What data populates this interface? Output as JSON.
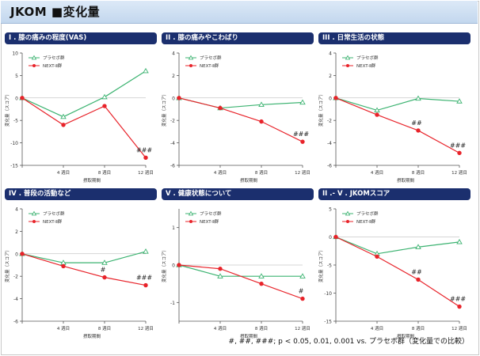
{
  "page": {
    "title": "JKOM  ■変化量"
  },
  "footnote": "#, ##, ###; p < 0.05, 0.01, 0.001 vs. プラセボ群（変化量での比較）",
  "chart_data": [
    {
      "type": "line",
      "title": "I . 膝の痛みの程度(VAS)",
      "xlabel": "摂取期間",
      "ylabel": "変化量（スコア）",
      "categories": [
        "",
        "4 週目",
        "8 週目",
        "12 週目"
      ],
      "ylim": [
        -15,
        10
      ],
      "yticks": [
        10,
        5,
        0,
        -5,
        -10,
        -15
      ],
      "series": [
        {
          "name": "プラセボ群",
          "color": "#3cb371",
          "marker": "triangle",
          "values": [
            0,
            -4.2,
            0.2,
            6.0
          ]
        },
        {
          "name": "NEXT-Ⅱ群",
          "color": "#e8232a",
          "marker": "circle",
          "values": [
            0,
            -6.0,
            -1.8,
            -13.3
          ]
        }
      ],
      "annotations": [
        {
          "text": "###",
          "index": 3,
          "near": 1
        }
      ],
      "legend": "top-left"
    },
    {
      "type": "line",
      "title": "II . 膝の痛みやこわばり",
      "xlabel": "摂取期間",
      "ylabel": "変化量（スコア）",
      "categories": [
        "",
        "4 週目",
        "8 週目",
        "12 週目"
      ],
      "ylim": [
        -6,
        4
      ],
      "yticks": [
        4,
        2,
        0,
        -2,
        -4,
        -6
      ],
      "series": [
        {
          "name": "プラセボ群",
          "color": "#3cb371",
          "marker": "triangle",
          "values": [
            0,
            -0.9,
            -0.6,
            -0.4
          ]
        },
        {
          "name": "NEXT-Ⅱ群",
          "color": "#e8232a",
          "marker": "circle",
          "values": [
            0,
            -0.9,
            -2.1,
            -3.9
          ]
        }
      ],
      "annotations": [
        {
          "text": "###",
          "index": 3,
          "near": 1
        }
      ],
      "legend": "top-left"
    },
    {
      "type": "line",
      "title": "III . 日常生活の状態",
      "xlabel": "摂取期間",
      "ylabel": "変化量（スコア）",
      "categories": [
        "",
        "4 週目",
        "8 週目",
        "12 週目"
      ],
      "ylim": [
        -6,
        4
      ],
      "yticks": [
        4,
        2,
        0,
        -2,
        -4,
        -6
      ],
      "series": [
        {
          "name": "プラセボ群",
          "color": "#3cb371",
          "marker": "triangle",
          "values": [
            0,
            -1.1,
            -0.05,
            -0.3
          ]
        },
        {
          "name": "NEXT-Ⅱ群",
          "color": "#e8232a",
          "marker": "circle",
          "values": [
            0,
            -1.5,
            -2.9,
            -4.9
          ]
        }
      ],
      "annotations": [
        {
          "text": "##",
          "index": 2,
          "near": 1
        },
        {
          "text": "###",
          "index": 3,
          "near": 1
        }
      ],
      "legend": "top-left"
    },
    {
      "type": "line",
      "title": "IV . 普段の活動など",
      "xlabel": "摂取期間",
      "ylabel": "変化量（スコア）",
      "categories": [
        "",
        "4 週目",
        "8 週目",
        "12 週目"
      ],
      "ylim": [
        -6,
        4
      ],
      "yticks": [
        4,
        2,
        0,
        -2,
        -4,
        -6
      ],
      "series": [
        {
          "name": "プラセボ群",
          "color": "#3cb371",
          "marker": "triangle",
          "values": [
            0,
            -0.8,
            -0.8,
            0.2
          ]
        },
        {
          "name": "NEXT-Ⅱ群",
          "color": "#e8232a",
          "marker": "circle",
          "values": [
            0,
            -1.1,
            -2.1,
            -2.8
          ]
        }
      ],
      "annotations": [
        {
          "text": "#",
          "index": 2,
          "near": 1
        },
        {
          "text": "###",
          "index": 3,
          "near": 1
        }
      ],
      "legend": "top-left"
    },
    {
      "type": "line",
      "title": "V . 健康状態について",
      "xlabel": "摂取期間",
      "ylabel": "変化量（スコア）",
      "categories": [
        "",
        "4 週目",
        "8 週目",
        "12 週目"
      ],
      "ylim": [
        -1.5,
        1.5
      ],
      "yticks": [
        1,
        0,
        -1
      ],
      "series": [
        {
          "name": "プラセボ群",
          "color": "#3cb371",
          "marker": "triangle",
          "values": [
            0,
            -0.3,
            -0.3,
            -0.3
          ]
        },
        {
          "name": "NEXT-Ⅱ群",
          "color": "#e8232a",
          "marker": "circle",
          "values": [
            0,
            -0.1,
            -0.5,
            -0.9
          ]
        }
      ],
      "annotations": [
        {
          "text": "#",
          "index": 3,
          "near": 1
        }
      ],
      "legend": "top-left"
    },
    {
      "type": "line",
      "title": "II .- V . JKOMスコア",
      "xlabel": "摂取期間",
      "ylabel": "変化量（スコア）",
      "categories": [
        "",
        "4 週目",
        "8 週目",
        "12 週目"
      ],
      "ylim": [
        -15,
        5
      ],
      "yticks": [
        5,
        0,
        -5,
        -10,
        -15
      ],
      "series": [
        {
          "name": "プラセボ群",
          "color": "#3cb371",
          "marker": "triangle",
          "values": [
            0,
            -3.0,
            -1.8,
            -0.9
          ]
        },
        {
          "name": "NEXT-Ⅱ群",
          "color": "#e8232a",
          "marker": "circle",
          "values": [
            0,
            -3.5,
            -7.6,
            -12.4
          ]
        }
      ],
      "annotations": [
        {
          "text": "##",
          "index": 2,
          "near": 1
        },
        {
          "text": "###",
          "index": 3,
          "near": 1
        }
      ],
      "legend": "top-left"
    }
  ]
}
